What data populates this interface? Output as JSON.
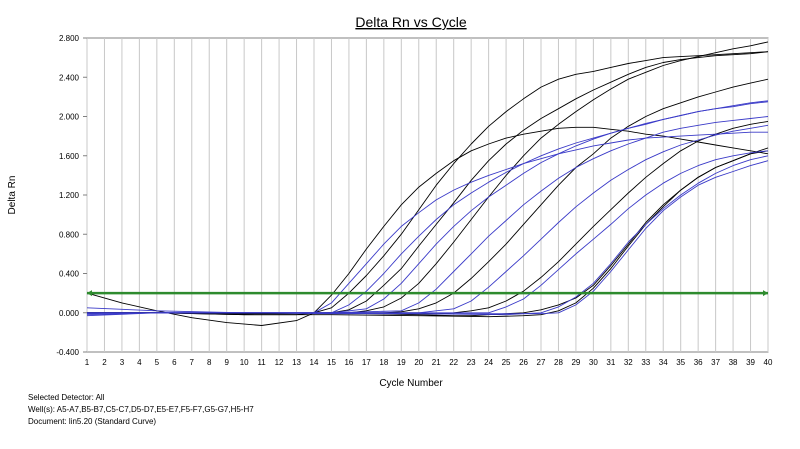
{
  "chart_data": {
    "type": "line",
    "title": "Delta Rn vs Cycle",
    "xlabel": "Cycle Number",
    "ylabel": "Delta Rn",
    "xlim": [
      1,
      40
    ],
    "ylim": [
      -0.4,
      2.8
    ],
    "x_ticks": [
      "1",
      "2",
      "3",
      "4",
      "5",
      "6",
      "7",
      "8",
      "9",
      "10",
      "11",
      "12",
      "13",
      "14",
      "15",
      "16",
      "17",
      "18",
      "19",
      "20",
      "21",
      "22",
      "23",
      "24",
      "25",
      "26",
      "27",
      "28",
      "29",
      "30",
      "31",
      "32",
      "33",
      "34",
      "35",
      "36",
      "37",
      "38",
      "39",
      "40"
    ],
    "y_ticks": [
      "-0.400",
      "0.000",
      "0.400",
      "0.800",
      "1.200",
      "1.600",
      "2.000",
      "2.400",
      "2.800"
    ],
    "grid": "vertical",
    "threshold": 0.2,
    "threshold_color": "#2E8B2E",
    "colors": {
      "black": "#000000",
      "blue": "#3A3AC8"
    },
    "series": [
      {
        "color": "black",
        "x": [
          1,
          3,
          5,
          7,
          9,
          11,
          13,
          14,
          15,
          16,
          17,
          18,
          19,
          20,
          21,
          22,
          23,
          24,
          25,
          26,
          27,
          28,
          29,
          30,
          31,
          32,
          33,
          34,
          35,
          36,
          37,
          38,
          39,
          40
        ],
        "values": [
          0.2,
          0.1,
          0.02,
          -0.05,
          -0.1,
          -0.13,
          -0.08,
          0.0,
          0.18,
          0.4,
          0.65,
          0.88,
          1.1,
          1.28,
          1.42,
          1.55,
          1.65,
          1.72,
          1.78,
          1.82,
          1.85,
          1.88,
          1.89,
          1.89,
          1.87,
          1.85,
          1.82,
          1.8,
          1.77,
          1.74,
          1.71,
          1.68,
          1.65,
          1.62
        ]
      },
      {
        "color": "black",
        "x": [
          1,
          5,
          10,
          13,
          14,
          15,
          16,
          17,
          18,
          19,
          20,
          21,
          22,
          23,
          24,
          25,
          26,
          27,
          28,
          29,
          30,
          31,
          32,
          33,
          34,
          35,
          36,
          37,
          38,
          39,
          40
        ],
        "values": [
          0.0,
          0.0,
          -0.02,
          -0.02,
          0.0,
          0.05,
          0.2,
          0.38,
          0.58,
          0.8,
          1.05,
          1.3,
          1.52,
          1.72,
          1.9,
          2.05,
          2.18,
          2.3,
          2.38,
          2.43,
          2.46,
          2.5,
          2.54,
          2.57,
          2.6,
          2.61,
          2.62,
          2.63,
          2.64,
          2.65,
          2.66
        ]
      },
      {
        "color": "black",
        "x": [
          1,
          5,
          10,
          14,
          15,
          16,
          17,
          18,
          19,
          20,
          21,
          22,
          23,
          24,
          25,
          26,
          27,
          28,
          29,
          30,
          31,
          32,
          33,
          34,
          35,
          36,
          37,
          38,
          39,
          40
        ],
        "values": [
          0.0,
          0.0,
          -0.01,
          0.0,
          0.0,
          0.03,
          0.12,
          0.28,
          0.45,
          0.68,
          0.9,
          1.12,
          1.35,
          1.55,
          1.72,
          1.86,
          1.98,
          2.08,
          2.18,
          2.27,
          2.35,
          2.43,
          2.5,
          2.55,
          2.58,
          2.6,
          2.62,
          2.63,
          2.64,
          2.66
        ]
      },
      {
        "color": "black",
        "x": [
          1,
          5,
          10,
          15,
          16,
          17,
          18,
          19,
          20,
          21,
          22,
          23,
          24,
          25,
          26,
          27,
          28,
          29,
          30,
          31,
          32,
          33,
          34,
          35,
          36,
          37,
          38,
          39,
          40
        ],
        "values": [
          0.0,
          0.0,
          -0.01,
          0.0,
          0.0,
          0.02,
          0.06,
          0.15,
          0.3,
          0.5,
          0.72,
          0.95,
          1.18,
          1.4,
          1.6,
          1.78,
          1.92,
          2.05,
          2.17,
          2.28,
          2.38,
          2.45,
          2.52,
          2.57,
          2.61,
          2.65,
          2.69,
          2.72,
          2.76
        ]
      },
      {
        "color": "black",
        "x": [
          1,
          5,
          10,
          15,
          18,
          19,
          20,
          21,
          22,
          23,
          24,
          25,
          26,
          27,
          28,
          29,
          30,
          31,
          32,
          33,
          34,
          35,
          36,
          37,
          38,
          39,
          40
        ],
        "values": [
          0.0,
          0.0,
          -0.01,
          0.0,
          0.0,
          0.01,
          0.04,
          0.1,
          0.2,
          0.35,
          0.52,
          0.7,
          0.9,
          1.1,
          1.3,
          1.48,
          1.62,
          1.78,
          1.9,
          2.0,
          2.08,
          2.14,
          2.2,
          2.25,
          2.3,
          2.34,
          2.38
        ]
      },
      {
        "color": "black",
        "x": [
          1,
          5,
          10,
          15,
          20,
          21,
          22,
          23,
          24,
          25,
          26,
          27,
          28,
          29,
          30,
          31,
          32,
          33,
          34,
          35,
          36,
          37,
          38,
          39,
          40
        ],
        "values": [
          0.0,
          0.0,
          -0.01,
          0.0,
          0.0,
          -0.01,
          0.0,
          0.02,
          0.05,
          0.12,
          0.22,
          0.36,
          0.52,
          0.7,
          0.88,
          1.05,
          1.22,
          1.38,
          1.52,
          1.65,
          1.75,
          1.82,
          1.88,
          1.92,
          1.95
        ]
      },
      {
        "color": "black",
        "x": [
          1,
          5,
          10,
          15,
          20,
          22,
          23,
          24,
          25,
          26,
          27,
          28,
          29,
          30,
          31,
          32,
          33,
          34,
          35,
          36,
          37,
          38,
          39,
          40
        ],
        "values": [
          0.0,
          0.0,
          -0.01,
          0.0,
          -0.02,
          -0.03,
          -0.03,
          -0.02,
          -0.01,
          0.0,
          0.03,
          0.08,
          0.15,
          0.28,
          0.48,
          0.7,
          0.92,
          1.1,
          1.25,
          1.38,
          1.48,
          1.55,
          1.62,
          1.65
        ]
      },
      {
        "color": "black",
        "x": [
          1,
          5,
          10,
          15,
          20,
          24,
          26,
          27,
          28,
          29,
          30,
          31,
          32,
          33,
          34,
          35,
          36,
          37,
          38,
          39,
          40
        ],
        "values": [
          0.0,
          0.0,
          -0.02,
          -0.02,
          -0.03,
          -0.04,
          -0.03,
          -0.02,
          0.02,
          0.1,
          0.25,
          0.45,
          0.68,
          0.9,
          1.08,
          1.25,
          1.38,
          1.48,
          1.55,
          1.62,
          1.68
        ]
      },
      {
        "color": "blue",
        "x": [
          1,
          5,
          10,
          14,
          15,
          16,
          17,
          18,
          19,
          20,
          21,
          22,
          23,
          24,
          25,
          26,
          27,
          28,
          29,
          30,
          31,
          32,
          33,
          34,
          35,
          36,
          37,
          38,
          39,
          40
        ],
        "values": [
          0.05,
          0.02,
          0.0,
          0.0,
          0.1,
          0.3,
          0.5,
          0.7,
          0.88,
          1.02,
          1.15,
          1.25,
          1.33,
          1.4,
          1.46,
          1.52,
          1.57,
          1.62,
          1.66,
          1.7,
          1.73,
          1.76,
          1.78,
          1.79,
          1.8,
          1.81,
          1.82,
          1.83,
          1.84,
          1.84
        ]
      },
      {
        "color": "blue",
        "x": [
          1,
          5,
          10,
          15,
          16,
          17,
          18,
          19,
          20,
          21,
          22,
          23,
          24,
          25,
          26,
          27,
          28,
          29,
          30,
          31,
          32,
          33,
          34,
          35,
          36,
          37,
          38,
          39,
          40
        ],
        "values": [
          -0.02,
          0.0,
          0.0,
          0.0,
          0.08,
          0.22,
          0.4,
          0.6,
          0.78,
          0.95,
          1.1,
          1.22,
          1.33,
          1.43,
          1.52,
          1.6,
          1.67,
          1.73,
          1.78,
          1.83,
          1.88,
          1.92,
          1.97,
          2.01,
          2.05,
          2.08,
          2.1,
          2.13,
          2.15
        ]
      },
      {
        "color": "blue",
        "x": [
          1,
          5,
          10,
          15,
          17,
          18,
          19,
          20,
          21,
          22,
          23,
          24,
          25,
          26,
          27,
          28,
          29,
          30,
          31,
          32,
          33,
          34,
          35,
          36,
          37,
          38,
          39,
          40
        ],
        "values": [
          -0.03,
          0.0,
          0.0,
          0.0,
          0.04,
          0.14,
          0.3,
          0.5,
          0.7,
          0.88,
          1.04,
          1.18,
          1.3,
          1.42,
          1.53,
          1.62,
          1.7,
          1.77,
          1.83,
          1.88,
          1.93,
          1.97,
          2.01,
          2.05,
          2.08,
          2.11,
          2.14,
          2.16
        ]
      },
      {
        "color": "blue",
        "x": [
          1,
          5,
          10,
          15,
          19,
          20,
          21,
          22,
          23,
          24,
          25,
          26,
          27,
          28,
          29,
          30,
          31,
          32,
          33,
          34,
          35,
          36,
          37,
          38,
          39,
          40
        ],
        "values": [
          0.0,
          0.0,
          0.0,
          0.0,
          0.02,
          0.1,
          0.24,
          0.42,
          0.6,
          0.78,
          0.94,
          1.1,
          1.24,
          1.37,
          1.48,
          1.57,
          1.65,
          1.72,
          1.78,
          1.84,
          1.88,
          1.91,
          1.94,
          1.96,
          1.98,
          2.0
        ]
      },
      {
        "color": "blue",
        "x": [
          1,
          5,
          10,
          15,
          20,
          22,
          23,
          24,
          25,
          26,
          27,
          28,
          29,
          30,
          31,
          32,
          33,
          34,
          35,
          36,
          37,
          38,
          39,
          40
        ],
        "values": [
          0.0,
          0.0,
          0.0,
          0.0,
          0.0,
          0.04,
          0.12,
          0.26,
          0.42,
          0.58,
          0.75,
          0.92,
          1.08,
          1.22,
          1.35,
          1.46,
          1.56,
          1.64,
          1.71,
          1.76,
          1.81,
          1.85,
          1.88,
          1.91
        ]
      },
      {
        "color": "blue",
        "x": [
          1,
          5,
          10,
          15,
          20,
          24,
          25,
          26,
          27,
          28,
          29,
          30,
          31,
          32,
          33,
          34,
          35,
          36,
          37,
          38,
          39,
          40
        ],
        "values": [
          0.0,
          0.0,
          0.0,
          0.0,
          0.0,
          0.0,
          0.06,
          0.14,
          0.28,
          0.44,
          0.6,
          0.75,
          0.9,
          1.06,
          1.2,
          1.32,
          1.42,
          1.5,
          1.56,
          1.6,
          1.63,
          1.65
        ]
      },
      {
        "color": "blue",
        "x": [
          1,
          5,
          10,
          15,
          20,
          25,
          26,
          27,
          28,
          29,
          30,
          31,
          32,
          33,
          34,
          35,
          36,
          37,
          38,
          39,
          40
        ],
        "values": [
          0.0,
          0.0,
          0.0,
          0.0,
          -0.01,
          -0.02,
          -0.01,
          0.0,
          0.06,
          0.16,
          0.3,
          0.5,
          0.72,
          0.9,
          1.06,
          1.2,
          1.32,
          1.42,
          1.5,
          1.56,
          1.6
        ]
      },
      {
        "color": "blue",
        "x": [
          1,
          5,
          10,
          15,
          20,
          25,
          27,
          28,
          29,
          30,
          31,
          32,
          33,
          34,
          35,
          36,
          37,
          38,
          39,
          40
        ],
        "values": [
          -0.01,
          0.0,
          0.0,
          -0.01,
          -0.01,
          -0.01,
          -0.01,
          0.0,
          0.08,
          0.22,
          0.42,
          0.64,
          0.86,
          1.04,
          1.18,
          1.3,
          1.38,
          1.44,
          1.5,
          1.55
        ]
      }
    ]
  },
  "footer": {
    "detector": "Selected Detector: All",
    "wells": "Well(s): A5-A7,B5-B7,C5-C7,D5-D7,E5-E7,F5-F7,G5-G7,H5-H7",
    "document": "Document: lin5.20 (Standard Curve)"
  }
}
